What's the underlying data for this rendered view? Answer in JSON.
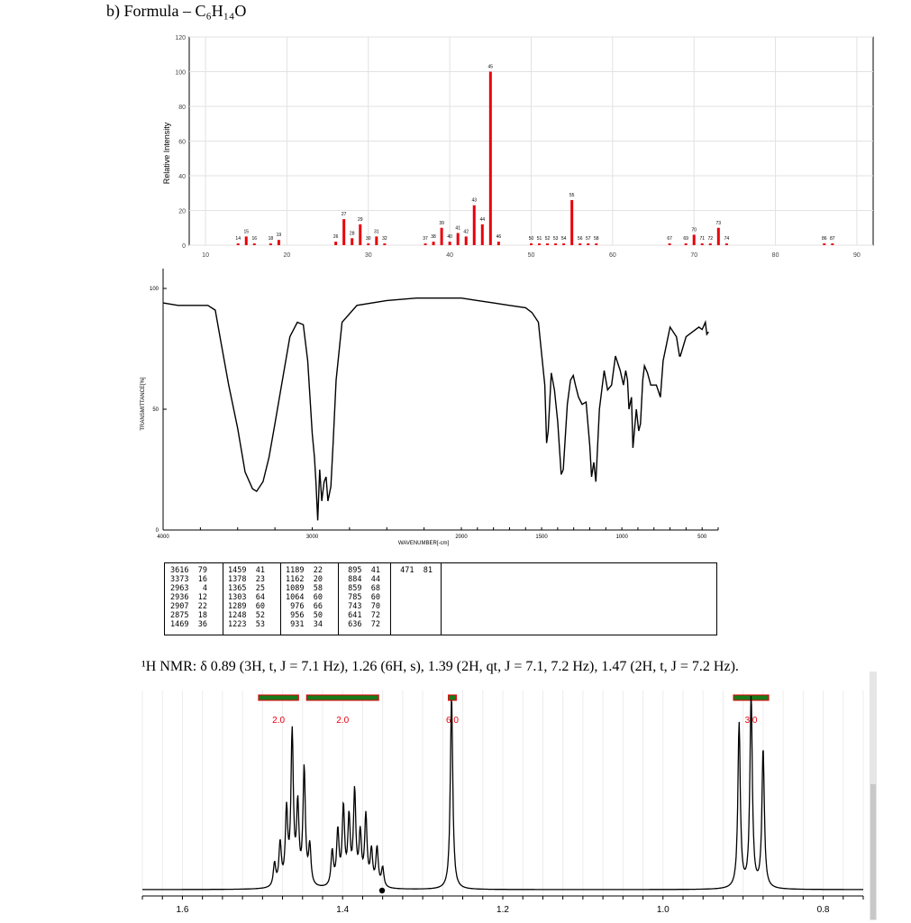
{
  "heading": "b)  Formula – C₆H₁₄O",
  "ms": {
    "y_axis_label": "Relative Intensity",
    "y_ticks": [
      "0",
      "20",
      "40",
      "60",
      "80",
      "100",
      "120"
    ],
    "x_ticks": [
      "10",
      "20",
      "30",
      "40",
      "50",
      "60",
      "70",
      "80",
      "90"
    ],
    "bar_color": "#e8000b"
  },
  "ir": {
    "y_ticks": [
      "100",
      "50",
      "0"
    ],
    "y_label": "TRANSMITTANCE[%]",
    "x_ticks": [
      "4000",
      "3000",
      "2000",
      "1500",
      "1000",
      "500"
    ],
    "x_label": "WAVENUMBER[-cm]",
    "table": [
      [
        "3616  79",
        "3373  16",
        "2963   4",
        "2936  12",
        "2907  22",
        "2875  18",
        "1469  36"
      ],
      [
        "1459  41",
        "1378  23",
        "1365  25",
        "1303  64",
        "1289  60",
        "1248  52",
        "1223  53"
      ],
      [
        "1189  22",
        "1162  20",
        "1089  58",
        "1064  60",
        " 976  66",
        " 956  50",
        " 931  34"
      ],
      [
        " 895  41",
        " 884  44",
        " 859  68",
        " 785  60",
        " 743  70",
        " 641  72",
        " 636  72"
      ],
      [
        " 471  81"
      ]
    ]
  },
  "nmr_description": "¹H NMR: δ 0.89 (3H, t, J = 7.1 Hz), 1.26 (6H, s), 1.39 (2H, qt, J = 7.1, 7.2 Hz), 1.47 (2H, t, J = 7.2 Hz).",
  "nmr": {
    "x_ticks": [
      "1.6",
      "1.4",
      "1.2",
      "1.0",
      "0.8"
    ],
    "integral_labels": [
      "2.0",
      "2.0",
      "6.0",
      "3.0"
    ],
    "integral_color": "#1a7a1a",
    "integral_edge_color": "#e8000b",
    "label_color": "#e8000b"
  },
  "chart_data": [
    {
      "type": "bar",
      "title": "",
      "xlabel": "",
      "ylabel": "Relative Intensity",
      "xlim": [
        8,
        92
      ],
      "ylim": [
        0,
        120
      ],
      "x": [
        14,
        15,
        16,
        18,
        19,
        26,
        27,
        28,
        29,
        30,
        31,
        32,
        37,
        38,
        39,
        40,
        41,
        42,
        43,
        44,
        45,
        46,
        50,
        51,
        52,
        53,
        54,
        55,
        56,
        57,
        58,
        67,
        69,
        70,
        71,
        72,
        73,
        74,
        86,
        87
      ],
      "values": [
        1,
        5,
        1,
        1,
        3,
        2,
        15,
        4,
        12,
        1,
        5,
        1,
        1,
        2,
        10,
        2,
        7,
        5,
        23,
        12,
        100,
        2,
        1,
        1,
        1,
        1,
        1,
        26,
        1,
        1,
        1,
        1,
        1,
        6,
        1,
        1,
        10,
        1,
        1,
        1
      ],
      "labels": [
        "14",
        "15",
        "16",
        "18",
        "19",
        "26",
        "27",
        "28",
        "29",
        "30",
        "31",
        "32",
        "37",
        "38",
        "39",
        "40",
        "41",
        "42",
        "43",
        "44",
        "45",
        "46",
        "50",
        "51",
        "52",
        "53",
        "54",
        "55",
        "56",
        "57",
        "58",
        "67",
        "69",
        "70",
        "71",
        "72",
        "73",
        "74",
        "86",
        "87"
      ]
    },
    {
      "type": "line",
      "title": "",
      "xlabel": "WAVENUMBER[-cm]",
      "ylabel": "TRANSMITTANCE[%]",
      "xlim": [
        4000,
        400
      ],
      "ylim": [
        0,
        100
      ],
      "x": [
        4000,
        3900,
        3800,
        3700,
        3650,
        3616,
        3560,
        3500,
        3450,
        3400,
        3373,
        3330,
        3290,
        3250,
        3200,
        3150,
        3100,
        3060,
        3030,
        3000,
        2985,
        2975,
        2963,
        2950,
        2936,
        2920,
        2907,
        2895,
        2875,
        2860,
        2840,
        2800,
        2700,
        2500,
        2300,
        2100,
        2000,
        1900,
        1800,
        1700,
        1600,
        1560,
        1520,
        1480,
        1469,
        1459,
        1440,
        1420,
        1400,
        1378,
        1365,
        1340,
        1320,
        1303,
        1289,
        1270,
        1248,
        1223,
        1200,
        1189,
        1175,
        1162,
        1140,
        1110,
        1089,
        1064,
        1040,
        1010,
        990,
        976,
        965,
        956,
        940,
        931,
        910,
        895,
        884,
        870,
        859,
        840,
        820,
        785,
        760,
        743,
        700,
        660,
        641,
        636,
        600,
        560,
        520,
        500,
        480,
        471,
        460
      ],
      "y": [
        94,
        93,
        93,
        93,
        91,
        79,
        60,
        42,
        24,
        17,
        16,
        20,
        30,
        44,
        62,
        80,
        86,
        85,
        70,
        40,
        30,
        20,
        4,
        25,
        12,
        20,
        22,
        12,
        18,
        36,
        62,
        86,
        93,
        95,
        96,
        96,
        96,
        95,
        94,
        93,
        92,
        90,
        86,
        60,
        36,
        41,
        65,
        58,
        45,
        23,
        25,
        52,
        62,
        64,
        60,
        55,
        52,
        53,
        35,
        22,
        28,
        20,
        50,
        66,
        58,
        60,
        72,
        66,
        60,
        66,
        62,
        50,
        55,
        34,
        50,
        41,
        44,
        62,
        68,
        65,
        60,
        60,
        55,
        70,
        84,
        80,
        72,
        72,
        80,
        82,
        84,
        83,
        86,
        81,
        82
      ]
    },
    {
      "type": "line",
      "title": "",
      "xlabel": "",
      "ylabel": "",
      "xlim": [
        1.65,
        0.75
      ],
      "ylim": [
        0,
        100
      ],
      "x": [
        1.485,
        1.478,
        1.47,
        1.463,
        1.456,
        1.448,
        1.441,
        1.413,
        1.406,
        1.399,
        1.392,
        1.385,
        1.378,
        1.371,
        1.364,
        1.357,
        1.35,
        1.264,
        0.905,
        0.89,
        0.875
      ],
      "y": [
        12,
        22,
        38,
        78,
        40,
        60,
        20,
        18,
        28,
        40,
        34,
        48,
        26,
        36,
        18,
        20,
        10,
        100,
        85,
        100,
        72
      ],
      "integrals": [
        2.0,
        2.0,
        6.0,
        3.0
      ]
    }
  ]
}
